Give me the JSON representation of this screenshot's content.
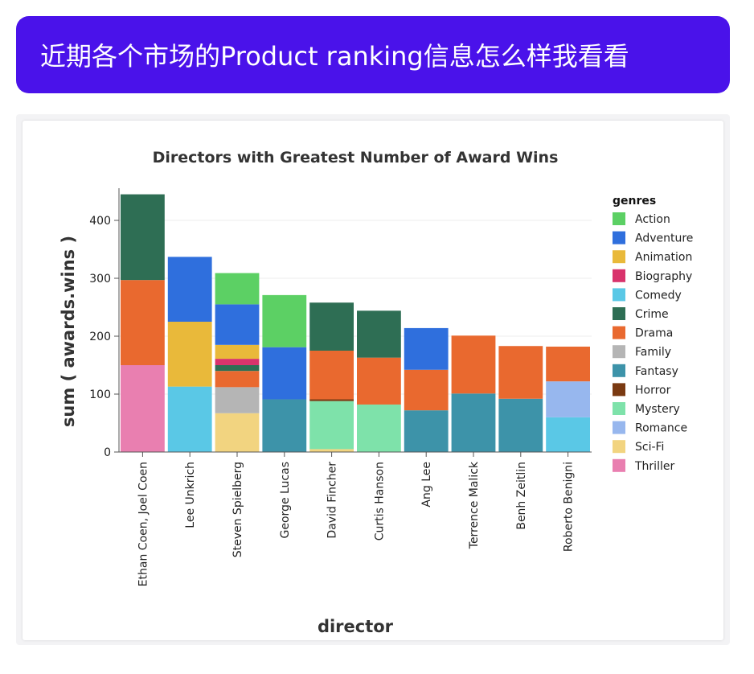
{
  "prompt": {
    "text": "近期各个市场的Product ranking信息怎么样我看看"
  },
  "chart_data": {
    "type": "bar",
    "stacked": true,
    "title": "Directors with Greatest Number of Award Wins",
    "xlabel": "director",
    "ylabel": "sum ( awards.wins )",
    "ylim": [
      0,
      450
    ],
    "yticks": [
      0,
      100,
      200,
      300,
      400
    ],
    "grid": true,
    "legend_title": "genres",
    "legend_position": "right",
    "categories": [
      "Ethan Coen, Joel Coen",
      "Lee Unkrich",
      "Steven Spielberg",
      "George Lucas",
      "David Fincher",
      "Curtis Hanson",
      "Ang Lee",
      "Terrence Malick",
      "Benh Zeitlin",
      "Roberto Benigni"
    ],
    "series": [
      {
        "name": "Thriller",
        "color": "#e97fb0",
        "values": [
          150,
          0,
          0,
          0,
          0,
          0,
          0,
          0,
          0,
          0
        ]
      },
      {
        "name": "Comedy",
        "color": "#5ac8e6",
        "values": [
          0,
          113,
          0,
          0,
          0,
          0,
          0,
          0,
          0,
          60
        ]
      },
      {
        "name": "Sci-Fi",
        "color": "#f2d480",
        "values": [
          0,
          0,
          67,
          0,
          5,
          0,
          0,
          0,
          0,
          0
        ]
      },
      {
        "name": "Family",
        "color": "#b5b5b5",
        "values": [
          0,
          0,
          45,
          0,
          0,
          0,
          0,
          0,
          0,
          0
        ]
      },
      {
        "name": "Fantasy",
        "color": "#3d93a9",
        "values": [
          0,
          0,
          0,
          91,
          0,
          0,
          72,
          101,
          92,
          0
        ]
      },
      {
        "name": "Mystery",
        "color": "#7ee2aa",
        "values": [
          0,
          0,
          0,
          0,
          83,
          82,
          0,
          0,
          0,
          0
        ]
      },
      {
        "name": "Romance",
        "color": "#97b7ee",
        "values": [
          0,
          0,
          0,
          0,
          0,
          0,
          0,
          0,
          0,
          62
        ]
      },
      {
        "name": "Horror",
        "color": "#7a3a12",
        "values": [
          0,
          0,
          0,
          0,
          3,
          0,
          0,
          0,
          0,
          0
        ]
      },
      {
        "name": "Drama",
        "color": "#e9692f",
        "values": [
          147,
          0,
          28,
          0,
          84,
          81,
          70,
          100,
          91,
          60
        ]
      },
      {
        "name": "Crime",
        "color": "#2e6e54",
        "values": [
          148,
          0,
          10,
          0,
          83,
          81,
          0,
          0,
          0,
          0
        ]
      },
      {
        "name": "Biography",
        "color": "#d9336c",
        "values": [
          0,
          0,
          11,
          0,
          0,
          0,
          0,
          0,
          0,
          0
        ]
      },
      {
        "name": "Animation",
        "color": "#e9b93a",
        "values": [
          0,
          112,
          24,
          0,
          0,
          0,
          0,
          0,
          0,
          0
        ]
      },
      {
        "name": "Adventure",
        "color": "#2f6fdd",
        "values": [
          0,
          112,
          70,
          90,
          0,
          0,
          72,
          0,
          0,
          0
        ]
      },
      {
        "name": "Action",
        "color": "#5cd064",
        "values": [
          0,
          0,
          54,
          90,
          0,
          0,
          0,
          0,
          0,
          0
        ]
      }
    ],
    "legend_order": [
      "Action",
      "Adventure",
      "Animation",
      "Biography",
      "Comedy",
      "Crime",
      "Drama",
      "Family",
      "Fantasy",
      "Horror",
      "Mystery",
      "Romance",
      "Sci-Fi",
      "Thriller"
    ]
  }
}
